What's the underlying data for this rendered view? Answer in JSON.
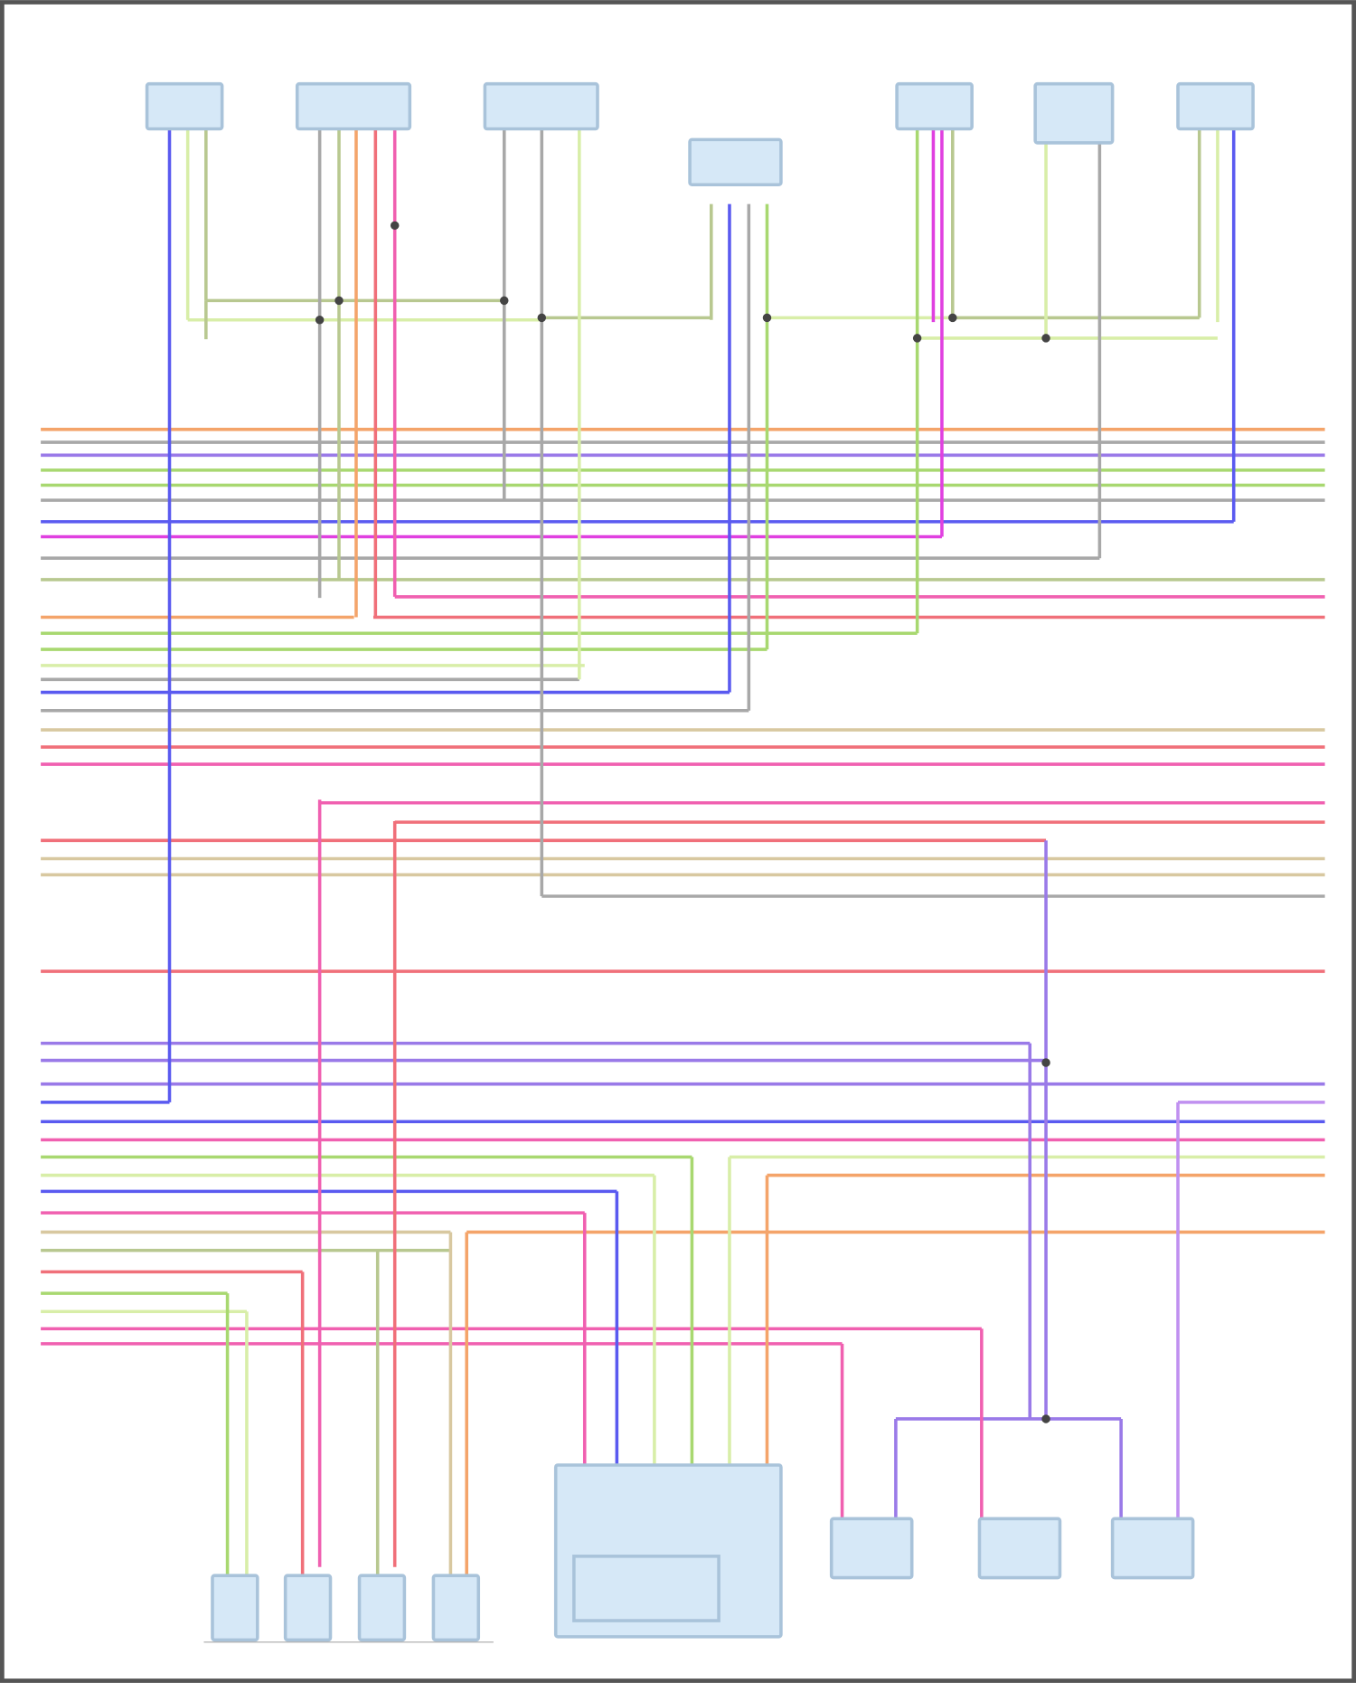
{
  "diagram": {
    "title": "",
    "colors": {
      "frame": "#555555",
      "component_fill": "#d6e8f7",
      "component_stroke": "#a9c3da",
      "orange": "#f4a46a",
      "red": "#f0707a",
      "pink": "#f060b0",
      "magenta": "#e040e0",
      "blue": "#5a5af0",
      "purple": "#9a7ae8",
      "lavender": "#c090f0",
      "green": "#a8d870",
      "lightgreen": "#d8eea8",
      "olive": "#b8c890",
      "tan": "#d8c8a0",
      "gray": "#a8a8a8",
      "splice": "#444444"
    }
  }
}
